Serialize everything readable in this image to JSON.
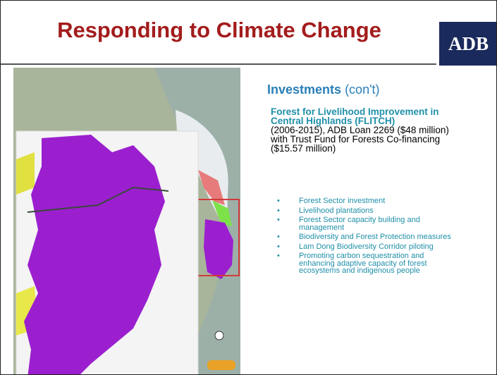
{
  "header": {
    "title": "Responding to Climate Change",
    "logo": "ADB"
  },
  "content": {
    "heading": "Investments",
    "heading_note": "(con't)",
    "project_name": "Forest for Livelihood Improvement in Central Highlands (FLITCH)",
    "project_details": "(2006-2015), ADB Loan 2269 ($48 million) with Trust Fund for Forests Co-financing ($15.57 million)",
    "bullets": [
      "Forest Sector investment",
      "Livelihood plantations",
      "Forest Sector capacity building and management",
      "Biodiversity and Forest Protection measures",
      "Lam Dong Biodiversity Corridor piloting",
      "Promoting carbon sequestration and enhancing adaptive capacity of forest ecosystems and indigenous people"
    ]
  }
}
